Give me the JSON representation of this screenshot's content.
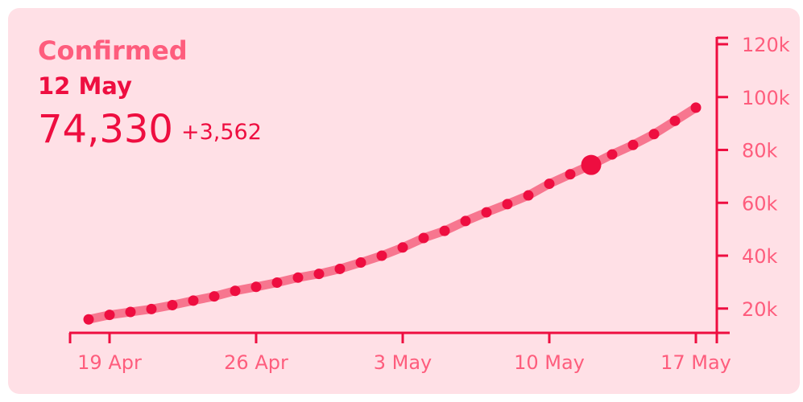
{
  "stats": {
    "title": "Confirmed",
    "date": "12 May",
    "value": "74,330",
    "delta": "+3,562"
  },
  "colors": {
    "background": "#ffe0e6",
    "accent": "#ee0e40",
    "light_accent": "#fe5d7d",
    "line_band": "#f7768f"
  },
  "chart_data": {
    "type": "line",
    "title": "",
    "xlabel": "",
    "ylabel": "",
    "x_start": "18 Apr",
    "x_ticks": [
      "19 Apr",
      "26 Apr",
      "3 May",
      "10 May",
      "17 May"
    ],
    "y_ticks": [
      "20k",
      "40k",
      "60k",
      "80k",
      "100k",
      "120k"
    ],
    "y_tick_values": [
      20000,
      40000,
      60000,
      80000,
      100000,
      120000
    ],
    "ylim": [
      10000,
      128000
    ],
    "y_axis_position": "right",
    "grid": false,
    "highlight": {
      "date": "12 May",
      "value": 74330
    },
    "series": [
      {
        "dates": [
          "18 Apr",
          "19 Apr",
          "20 Apr",
          "21 Apr",
          "22 Apr",
          "23 Apr",
          "24 Apr",
          "25 Apr",
          "26 Apr",
          "27 Apr",
          "28 Apr",
          "29 Apr",
          "30 Apr",
          "1 May",
          "2 May",
          "3 May",
          "4 May",
          "5 May",
          "6 May",
          "7 May",
          "8 May",
          "9 May",
          "10 May",
          "11 May",
          "12 May",
          "13 May",
          "14 May",
          "15 May",
          "16 May",
          "17 May"
        ],
        "values": [
          15900,
          17600,
          18700,
          19800,
          21300,
          23000,
          24600,
          26700,
          28200,
          29800,
          31700,
          33100,
          35000,
          37400,
          40000,
          43100,
          46700,
          49400,
          53100,
          56400,
          59500,
          62800,
          67200,
          70800,
          74330,
          78300,
          81900,
          86000,
          91000,
          96000
        ]
      }
    ]
  }
}
